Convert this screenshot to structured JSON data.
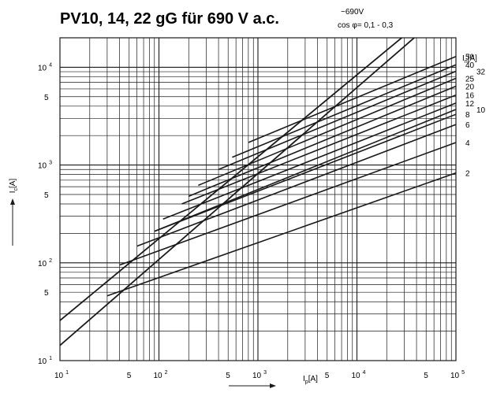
{
  "chart_data": {
    "type": "line",
    "title": "PV10, 14, 22 gG für 690 V a.c.",
    "voltage_note": "~690V",
    "cos_note": "cos φ= 0,1 - 0,3",
    "xlabel": {
      "main": "I",
      "sub": "p",
      "unit": "[A]"
    },
    "ylabel": {
      "main": "I",
      "sub": "c",
      "unit": "[A]"
    },
    "legend_title": {
      "main": "I",
      "sub": "n",
      "unit": "[A]"
    },
    "x_scale": "log",
    "y_scale": "log",
    "xlim": [
      10,
      100000
    ],
    "ylim": [
      10,
      20000
    ],
    "grid": true,
    "x_ticks": [
      {
        "value": 10,
        "base": "10",
        "exp": "1"
      },
      {
        "value": 50,
        "base": "5",
        "exp": ""
      },
      {
        "value": 100,
        "base": "10",
        "exp": "2"
      },
      {
        "value": 500,
        "base": "5",
        "exp": ""
      },
      {
        "value": 1000,
        "base": "10",
        "exp": "3"
      },
      {
        "value": 5000,
        "base": "5",
        "exp": ""
      },
      {
        "value": 10000,
        "base": "10",
        "exp": "4"
      },
      {
        "value": 50000,
        "base": "5",
        "exp": ""
      },
      {
        "value": 100000,
        "base": "10",
        "exp": "5"
      }
    ],
    "y_ticks": [
      {
        "value": 10,
        "base": "10",
        "exp": "1"
      },
      {
        "value": 50,
        "base": "5",
        "exp": ""
      },
      {
        "value": 100,
        "base": "10",
        "exp": "2"
      },
      {
        "value": 500,
        "base": "5",
        "exp": ""
      },
      {
        "value": 1000,
        "base": "10",
        "exp": "3"
      },
      {
        "value": 5000,
        "base": "5",
        "exp": ""
      },
      {
        "value": 10000,
        "base": "10",
        "exp": "4"
      }
    ],
    "envelope_lines": [
      {
        "x": [
          10,
          30000
        ],
        "y": [
          25.7,
          21000
        ]
      },
      {
        "x": [
          10,
          40000
        ],
        "y": [
          14.3,
          21000
        ]
      }
    ],
    "series": [
      {
        "name": "2",
        "x": [
          30,
          100000
        ],
        "y": [
          46,
          830
        ]
      },
      {
        "name": "4",
        "x": [
          40,
          100000
        ],
        "y": [
          95,
          1700
        ]
      },
      {
        "name": "6",
        "x": [
          60,
          100000
        ],
        "y": [
          148,
          2600
        ]
      },
      {
        "name": "8",
        "x": [
          90,
          100000
        ],
        "y": [
          210,
          3300
        ]
      },
      {
        "name": "10",
        "x": [
          90,
          100000
        ],
        "y": [
          210,
          3700
        ]
      },
      {
        "name": "12",
        "x": [
          110,
          100000
        ],
        "y": [
          280,
          4300
        ]
      },
      {
        "name": "16",
        "x": [
          170,
          100000
        ],
        "y": [
          400,
          5200
        ]
      },
      {
        "name": "20",
        "x": [
          200,
          100000
        ],
        "y": [
          480,
          6400
        ]
      },
      {
        "name": "25",
        "x": [
          250,
          100000
        ],
        "y": [
          620,
          7700
        ]
      },
      {
        "name": "32",
        "x": [
          400,
          100000
        ],
        "y": [
          900,
          9100
        ]
      },
      {
        "name": "40",
        "x": [
          550,
          100000
        ],
        "y": [
          1200,
          10600
        ]
      },
      {
        "name": "50",
        "x": [
          800,
          100000
        ],
        "y": [
          1700,
          12900
        ]
      }
    ]
  }
}
